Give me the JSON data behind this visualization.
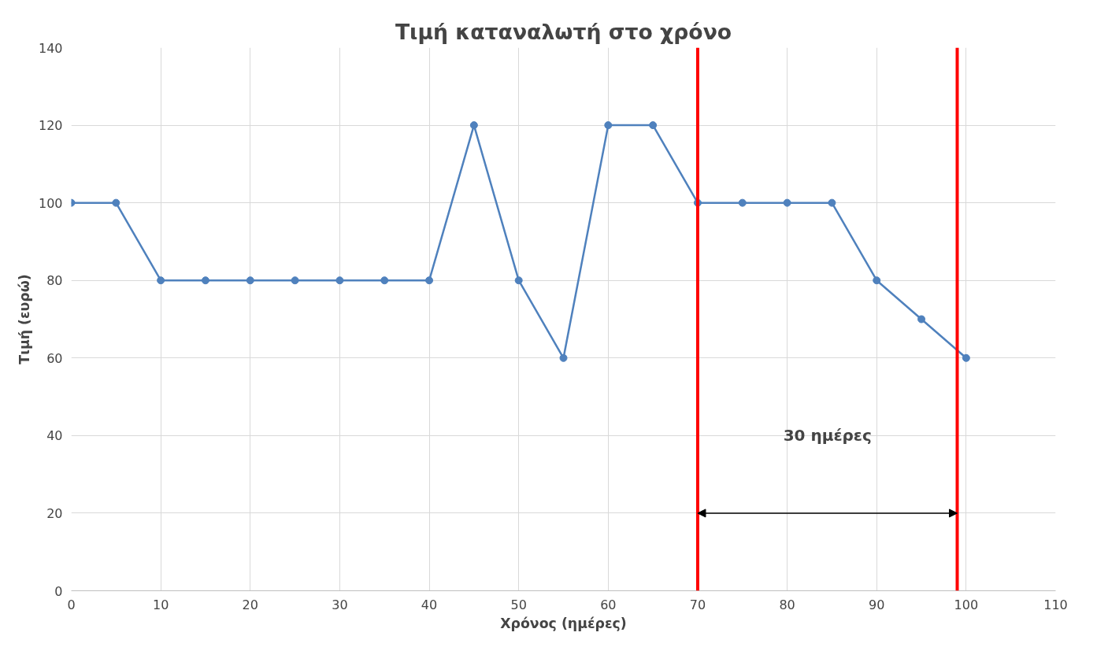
{
  "chart_data": {
    "type": "line",
    "title": "Τιμή καταναλωτή στο χρόνο",
    "xlabel": "Χρόνος (ημέρες)",
    "ylabel": "Τιμή (ευρώ)",
    "x": [
      0,
      5,
      10,
      15,
      20,
      25,
      30,
      35,
      40,
      45,
      50,
      55,
      60,
      65,
      70,
      75,
      80,
      85,
      90,
      95,
      100
    ],
    "series": [
      {
        "color": "#4f81bd",
        "values": [
          100,
          100,
          80,
          80,
          80,
          80,
          80,
          80,
          80,
          120,
          80,
          60,
          120,
          120,
          100,
          100,
          100,
          100,
          80,
          70,
          60
        ]
      }
    ],
    "xlim": [
      0,
      110
    ],
    "xticks": [
      0,
      10,
      20,
      30,
      40,
      50,
      60,
      70,
      80,
      90,
      100,
      110
    ],
    "ylim": [
      0,
      140
    ],
    "yticks": [
      0,
      20,
      40,
      60,
      80,
      100,
      120,
      140
    ],
    "ref_lines": [
      {
        "axis": "x",
        "value": 70,
        "color": "#ff0000"
      },
      {
        "axis": "x",
        "value": 99,
        "color": "#ff0000"
      }
    ],
    "annotations": [
      "30 ημέρες"
    ],
    "grid": true,
    "marker": "circle",
    "line_style": "solid"
  }
}
